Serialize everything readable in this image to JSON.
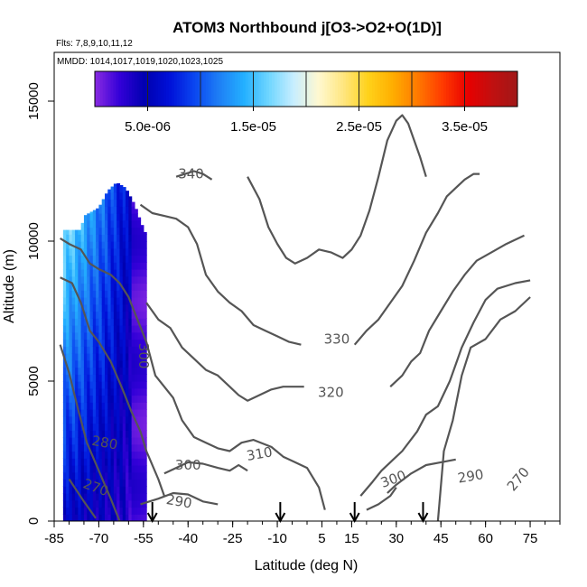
{
  "chart_data": {
    "type": "heatmap",
    "title": "ATOM3 Northbound j[O3->O2+O(1D)]",
    "flights_label": "Flts: 7,8,9,10,11,12",
    "dates_label": "MMDD: 1014,1017,1019,1020,1023,1025",
    "xlabel": "Latitude (deg N)",
    "ylabel": "Altitude (m)",
    "xlim": [
      -85,
      85
    ],
    "ylim": [
      0,
      17000
    ],
    "x_ticks": [
      -85,
      -70,
      -55,
      -40,
      -25,
      -10,
      5,
      15,
      30,
      45,
      60,
      75
    ],
    "x_minor_step": 5,
    "y_ticks": [
      0,
      5000,
      10000,
      15000
    ],
    "colorbar": {
      "range": [
        0,
        4e-05
      ],
      "tick_values": [
        5e-06,
        1.5e-05,
        2.5e-05,
        3.5e-05
      ],
      "tick_labels": [
        "5.0e-06",
        "1.5e-05",
        "2.5e-05",
        "3.5e-05"
      ],
      "colors": [
        "#8a2be2",
        "#3300d8",
        "#0000b0",
        "#0010d8",
        "#0a46f0",
        "#1e7ff5",
        "#24b0ff",
        "#6fd6ff",
        "#c8eeff",
        "#fff8d0",
        "#ffe680",
        "#ffd21a",
        "#ffad00",
        "#ff7800",
        "#ff3a00",
        "#e80000",
        "#c01010",
        "#a01818"
      ]
    },
    "heatmap_region": {
      "x_range": [
        -82,
        -54
      ],
      "y_max_profile": [
        [
          -82,
          10400
        ],
        [
          -76,
          10400
        ],
        [
          -75,
          10900
        ],
        [
          -70,
          11200
        ],
        [
          -67,
          11800
        ],
        [
          -64,
          12100
        ],
        [
          -61,
          11900
        ],
        [
          -58,
          11300
        ],
        [
          -56,
          10700
        ],
        [
          -54,
          10200
        ]
      ]
    },
    "contours": [
      {
        "level": "270",
        "points": [
          [
            -80,
            1500
          ],
          [
            -75,
            700
          ],
          [
            -71,
            100
          ]
        ]
      },
      {
        "level": "280",
        "points": [
          [
            -83,
            6300
          ],
          [
            -80,
            5300
          ],
          [
            -77,
            4000
          ],
          [
            -74,
            2800
          ],
          [
            -70,
            1800
          ],
          [
            -66,
            800
          ],
          [
            -63,
            0
          ]
        ]
      },
      {
        "level": "290",
        "points": [
          [
            -56,
            600
          ],
          [
            -50,
            800
          ],
          [
            -45,
            1000
          ],
          [
            -40,
            950
          ],
          [
            -35,
            700
          ],
          [
            -30,
            600
          ]
        ]
      },
      {
        "level": "290",
        "points": [
          [
            27,
            1000
          ],
          [
            30,
            1300
          ],
          [
            35,
            1700
          ],
          [
            40,
            2000
          ],
          [
            45,
            2100
          ],
          [
            50,
            2200
          ]
        ]
      },
      {
        "level": "290",
        "points": [
          [
            44,
            0
          ],
          [
            46,
            2500
          ],
          [
            49,
            3600
          ],
          [
            52,
            5200
          ],
          [
            55,
            6200
          ],
          [
            60,
            6500
          ],
          [
            65,
            7200
          ],
          [
            70,
            7500
          ],
          [
            75,
            8000
          ]
        ]
      },
      {
        "level": "300",
        "points": [
          [
            -83,
            8700
          ],
          [
            -79,
            8500
          ],
          [
            -76,
            7800
          ],
          [
            -73,
            6800
          ],
          [
            -70,
            6400
          ],
          [
            -66,
            5700
          ],
          [
            -62,
            4700
          ],
          [
            -59,
            3900
          ],
          [
            -56,
            3200
          ],
          [
            -54,
            2500
          ],
          [
            -50,
            1500
          ],
          [
            -48,
            900
          ]
        ]
      },
      {
        "level": "300",
        "points": [
          [
            -48,
            1700
          ],
          [
            -44,
            1900
          ],
          [
            -40,
            2100
          ],
          [
            -35,
            2050
          ],
          [
            -30,
            1900
          ],
          [
            -26,
            1800
          ],
          [
            -23,
            2000
          ],
          [
            -20,
            1800
          ]
        ]
      },
      {
        "level": "300",
        "points": [
          [
            18,
            900
          ],
          [
            22,
            1400
          ],
          [
            25,
            1800
          ],
          [
            28,
            2100
          ],
          [
            32,
            2500
          ],
          [
            37,
            3200
          ],
          [
            40,
            3800
          ],
          [
            44,
            4100
          ],
          [
            48,
            5000
          ],
          [
            52,
            6200
          ],
          [
            56,
            7100
          ],
          [
            60,
            7900
          ],
          [
            64,
            8300
          ],
          [
            70,
            8500
          ],
          [
            75,
            8600
          ]
        ]
      },
      {
        "level": "310",
        "points": [
          [
            -83,
            10100
          ],
          [
            -80,
            9900
          ],
          [
            -76,
            9700
          ],
          [
            -73,
            9200
          ],
          [
            -70,
            9000
          ],
          [
            -66,
            8800
          ],
          [
            -63,
            8500
          ],
          [
            -60,
            8000
          ],
          [
            -57,
            7200
          ],
          [
            -54,
            6400
          ],
          [
            -51,
            5200
          ],
          [
            -48,
            4800
          ],
          [
            -45,
            4400
          ],
          [
            -42,
            3600
          ],
          [
            -38,
            3000
          ],
          [
            -34,
            2800
          ],
          [
            -30,
            2600
          ],
          [
            -26,
            2500
          ],
          [
            -22,
            2800
          ],
          [
            -18,
            2900
          ],
          [
            -12,
            2650
          ],
          [
            -8,
            2300
          ],
          [
            -4,
            2100
          ],
          [
            0,
            1900
          ],
          [
            4,
            1200
          ],
          [
            6,
            400
          ]
        ]
      },
      {
        "level": "310",
        "points": [
          [
            20,
            400
          ],
          [
            24,
            600
          ],
          [
            28,
            900
          ],
          [
            30,
            1200
          ]
        ]
      },
      {
        "level": "320",
        "points": [
          [
            -54,
            7800
          ],
          [
            -50,
            7200
          ],
          [
            -46,
            6900
          ],
          [
            -42,
            6200
          ],
          [
            -38,
            5800
          ],
          [
            -34,
            5400
          ],
          [
            -30,
            5200
          ],
          [
            -26,
            4800
          ],
          [
            -23,
            4500
          ],
          [
            -20,
            4300
          ],
          [
            -16,
            4500
          ],
          [
            -12,
            4700
          ],
          [
            -8,
            4800
          ],
          [
            -4,
            4800
          ],
          [
            -1,
            4800
          ]
        ]
      },
      {
        "level": "320",
        "points": [
          [
            28,
            4800
          ],
          [
            32,
            5200
          ],
          [
            35,
            5700
          ],
          [
            38,
            6000
          ],
          [
            41,
            6800
          ],
          [
            45,
            7500
          ],
          [
            49,
            8200
          ],
          [
            53,
            8800
          ],
          [
            57,
            9300
          ],
          [
            62,
            9600
          ],
          [
            67,
            9900
          ],
          [
            73,
            10200
          ]
        ]
      },
      {
        "level": "330",
        "points": [
          [
            -56,
            11300
          ],
          [
            -52,
            11000
          ],
          [
            -48,
            10900
          ],
          [
            -44,
            10800
          ],
          [
            -40,
            10500
          ],
          [
            -37,
            9900
          ],
          [
            -34,
            8800
          ],
          [
            -30,
            8200
          ],
          [
            -26,
            7800
          ],
          [
            -22,
            7500
          ],
          [
            -18,
            7000
          ],
          [
            -14,
            6800
          ],
          [
            -10,
            6600
          ],
          [
            -6,
            6400
          ],
          [
            -2,
            6300
          ]
        ]
      },
      {
        "level": "330",
        "points": [
          [
            16,
            6300
          ],
          [
            20,
            6800
          ],
          [
            24,
            7200
          ],
          [
            28,
            7800
          ],
          [
            32,
            8400
          ],
          [
            36,
            9300
          ],
          [
            40,
            10300
          ],
          [
            44,
            11000
          ],
          [
            47,
            11600
          ],
          [
            50,
            11900
          ],
          [
            53,
            12200
          ],
          [
            56,
            12400
          ],
          [
            58,
            12400
          ]
        ]
      },
      {
        "level": "340",
        "points": [
          [
            -44,
            12300
          ],
          [
            -41,
            12400
          ],
          [
            -38,
            12500
          ],
          [
            -35,
            12400
          ],
          [
            -32,
            12200
          ]
        ]
      },
      {
        "level": "340",
        "points": [
          [
            -20,
            12300
          ],
          [
            -16,
            11500
          ],
          [
            -13,
            10500
          ],
          [
            -10,
            9900
          ],
          [
            -7,
            9400
          ],
          [
            -4,
            9200
          ],
          [
            0,
            9400
          ],
          [
            4,
            9700
          ],
          [
            8,
            9600
          ],
          [
            12,
            9400
          ],
          [
            15,
            9700
          ],
          [
            18,
            10200
          ],
          [
            21,
            11100
          ],
          [
            24,
            12300
          ],
          [
            27,
            13600
          ],
          [
            30,
            14300
          ],
          [
            32,
            14500
          ],
          [
            34,
            14200
          ],
          [
            36,
            13600
          ],
          [
            38,
            13000
          ],
          [
            40,
            12300
          ]
        ]
      }
    ],
    "contour_labels": [
      {
        "text": "340",
        "x": -39,
        "y": 12400,
        "angle": 0
      },
      {
        "text": "330",
        "x": 10,
        "y": 6500,
        "angle": 0
      },
      {
        "text": "320",
        "x": 8,
        "y": 4600,
        "angle": 0
      },
      {
        "text": "310",
        "x": -16,
        "y": 2400,
        "angle": -10
      },
      {
        "text": "300",
        "x": -40,
        "y": 2000,
        "angle": 0
      },
      {
        "text": "300",
        "x": 29,
        "y": 1500,
        "angle": -20
      },
      {
        "text": "300",
        "x": -55,
        "y": 5900,
        "angle": 90
      },
      {
        "text": "290",
        "x": -43,
        "y": 700,
        "angle": 10
      },
      {
        "text": "290",
        "x": 55,
        "y": 1600,
        "angle": -10
      },
      {
        "text": "280",
        "x": -68,
        "y": 2800,
        "angle": 10
      },
      {
        "text": "270",
        "x": -71,
        "y": 1200,
        "angle": 20
      },
      {
        "text": "270",
        "x": 71,
        "y": 1500,
        "angle": -50
      }
    ],
    "arrow_markers_lat": [
      -52,
      -9,
      16,
      39
    ]
  }
}
